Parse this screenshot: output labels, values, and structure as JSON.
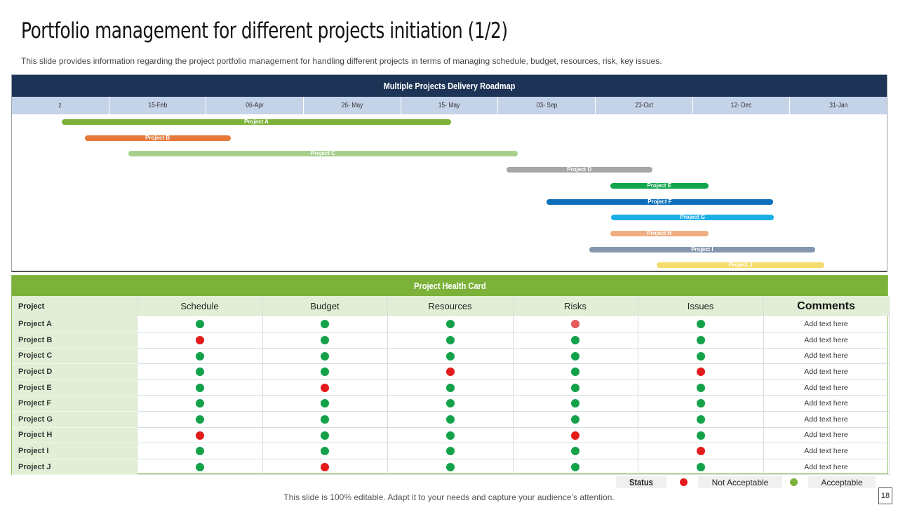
{
  "slide": {
    "title": "Portfolio management for different projects initiation (1/2)",
    "subtitle": "This slide provides information regarding the project portfolio management for handling different projects in terms of managing schedule, budget, resources, risk, key issues.",
    "footer": "This slide is 100% editable. Adapt it to your needs and capture your audience’s attention.",
    "page_number": "18"
  },
  "roadmap": {
    "title": "Multiple Projects Delivery Roadmap",
    "ticks": [
      "z",
      "15-Feb",
      "06-Apr",
      "26- May",
      "15- May",
      "03- Sep",
      "23-Oct",
      "12- Dec",
      "31-Jan"
    ],
    "projects": [
      {
        "name": "Project A",
        "start": 0.057,
        "end": 0.502,
        "color": "#7cb23a"
      },
      {
        "name": "Project B",
        "start": 0.083,
        "end": 0.25,
        "color": "#e5793a"
      },
      {
        "name": "Project C",
        "start": 0.133,
        "end": 0.578,
        "color": "#a8d08d"
      },
      {
        "name": "Project D",
        "start": 0.565,
        "end": 0.732,
        "color": "#a6a6a6"
      },
      {
        "name": "Project E",
        "start": 0.684,
        "end": 0.796,
        "color": "#12a64c"
      },
      {
        "name": "Project F",
        "start": 0.611,
        "end": 0.87,
        "color": "#0b6fba"
      },
      {
        "name": "Project G",
        "start": 0.685,
        "end": 0.871,
        "color": "#19aee6"
      },
      {
        "name": "Project H",
        "start": 0.684,
        "end": 0.796,
        "color": "#f0ad84"
      },
      {
        "name": "Project I",
        "start": 0.66,
        "end": 0.918,
        "color": "#8597ae"
      },
      {
        "name": "Project J",
        "start": 0.737,
        "end": 0.929,
        "color": "#f5dc6e"
      }
    ]
  },
  "health": {
    "title": "Project Health Card",
    "columns": [
      "Project",
      "Schedule",
      "Budget",
      "Resources",
      "Risks",
      "Issues",
      "Comments"
    ],
    "rows": [
      {
        "project": "Project A",
        "statuses": [
          "green",
          "green",
          "green",
          "lightred",
          "green"
        ],
        "comment": "Add text here"
      },
      {
        "project": "Project B",
        "statuses": [
          "red",
          "green",
          "green",
          "green",
          "green"
        ],
        "comment": "Add text here"
      },
      {
        "project": "Project C",
        "statuses": [
          "green",
          "green",
          "green",
          "green",
          "green"
        ],
        "comment": "Add text here"
      },
      {
        "project": "Project D",
        "statuses": [
          "green",
          "green",
          "red",
          "green",
          "red"
        ],
        "comment": "Add text here"
      },
      {
        "project": "Project E",
        "statuses": [
          "green",
          "red",
          "green",
          "green",
          "green"
        ],
        "comment": "Add text here"
      },
      {
        "project": "Project F",
        "statuses": [
          "green",
          "green",
          "green",
          "green",
          "green"
        ],
        "comment": "Add text here"
      },
      {
        "project": "Project G",
        "statuses": [
          "green",
          "green",
          "green",
          "green",
          "green"
        ],
        "comment": "Add text here"
      },
      {
        "project": "Project H",
        "statuses": [
          "red",
          "green",
          "green",
          "red",
          "green"
        ],
        "comment": "Add text here"
      },
      {
        "project": "Project I",
        "statuses": [
          "green",
          "green",
          "green",
          "green",
          "red"
        ],
        "comment": "Add text here"
      },
      {
        "project": "Project J",
        "statuses": [
          "green",
          "red",
          "green",
          "green",
          "green"
        ],
        "comment": "Add text here"
      }
    ]
  },
  "legend": {
    "status_label": "Status",
    "not_acceptable_label": "Not Acceptable",
    "acceptable_label": "Acceptable",
    "not_acceptable_color": "#e31b1b",
    "acceptable_color": "#7cb23a"
  },
  "colors": {
    "green": "#13a24a",
    "red": "#e31b1b",
    "lightred": "#e85a5a"
  }
}
